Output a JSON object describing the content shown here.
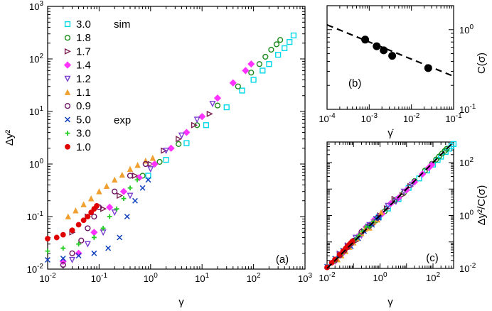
{
  "chart_data": [
    {
      "panel": "a",
      "type": "scatter",
      "tag": "(a)",
      "xlabel": "γ",
      "ylabel": "Δy²",
      "xscale": "log",
      "yscale": "log",
      "xlim": [
        0.01,
        1000
      ],
      "ylim": [
        0.01,
        1000
      ],
      "x_ticks": [
        "10^-2",
        "10^-1",
        "10^0",
        "10^1",
        "10^2",
        "10^3"
      ],
      "y_ticks": [
        "10^-2",
        "10^-1",
        "10^0",
        "10^1",
        "10^2",
        "10^3"
      ],
      "legend_position": "top-left",
      "legend_group_labels": {
        "sim": "sim",
        "exp": "exp"
      },
      "series": [
        {
          "name": "3.0",
          "group": "sim",
          "marker": "square",
          "color": "#00d8e8",
          "x": [
            0.9,
            2.0,
            5.0,
            12,
            30,
            60,
            100,
            150,
            200,
            300,
            400,
            500,
            600
          ],
          "y": [
            0.6,
            1.2,
            2.5,
            5.5,
            12,
            25,
            40,
            60,
            80,
            120,
            160,
            210,
            280
          ]
        },
        {
          "name": "1.8",
          "group": "sim",
          "marker": "circle",
          "color": "#1a8a1a",
          "x": [
            0.7,
            1.5,
            3.5,
            8,
            20,
            50,
            90,
            130,
            170,
            220,
            280,
            330
          ],
          "y": [
            0.6,
            1.1,
            2.4,
            5.5,
            13,
            30,
            55,
            80,
            110,
            150,
            190,
            230
          ]
        },
        {
          "name": "1.7",
          "group": "sim",
          "marker": "tri-right",
          "color": "#7a1f4f",
          "x": [
            0.03,
            0.06,
            0.12,
            0.25,
            0.5,
            1.0,
            1.8,
            3.5,
            7,
            14
          ],
          "y": [
            0.05,
            0.1,
            0.14,
            0.25,
            0.6,
            1.0,
            1.8,
            3.0,
            5.5,
            9
          ]
        },
        {
          "name": "1.4",
          "group": "sim",
          "marker": "diamond",
          "color": "#ff33ff",
          "x": [
            0.02,
            0.04,
            0.08,
            0.16,
            0.3,
            0.6,
            1.2,
            2.5,
            5,
            10,
            20,
            40,
            70,
            90
          ],
          "y": [
            0.014,
            0.02,
            0.05,
            0.15,
            0.3,
            0.55,
            1.0,
            2.0,
            4.0,
            8,
            18,
            35,
            60,
            80
          ]
        },
        {
          "name": "1.2",
          "group": "sim",
          "marker": "tri-down",
          "color": "#7a3fd0",
          "x": [
            0.03,
            0.06,
            0.12,
            0.2,
            0.4,
            1.0,
            2.0,
            4.0,
            8,
            16
          ],
          "y": [
            0.015,
            0.03,
            0.05,
            0.12,
            0.25,
            0.8,
            1.8,
            3.5,
            7,
            14
          ]
        },
        {
          "name": "1.1",
          "group": "sim",
          "marker": "tri-up",
          "color": "#f0a030",
          "x": [
            0.025,
            0.035,
            0.05,
            0.07,
            0.1,
            0.14,
            0.2,
            0.28,
            0.4,
            0.56,
            0.8,
            1.1
          ],
          "y": [
            0.1,
            0.13,
            0.17,
            0.22,
            0.3,
            0.38,
            0.5,
            0.62,
            0.8,
            0.95,
            1.15,
            1.3
          ]
        },
        {
          "name": "0.9",
          "group": "sim",
          "marker": "circle",
          "color": "#6a1060",
          "x": [
            0.02,
            0.03,
            0.045,
            0.06,
            0.08,
            0.1,
            0.2,
            0.4,
            0.8
          ],
          "y": [
            0.012,
            0.02,
            0.035,
            0.06,
            0.1,
            0.15,
            0.3,
            0.6,
            1.0
          ]
        },
        {
          "name": "5.0",
          "group": "exp",
          "marker": "x",
          "color": "#1040c0",
          "x": [
            0.01,
            0.02,
            0.04,
            0.08,
            0.15,
            0.25,
            0.35,
            0.5,
            0.7,
            0.9
          ],
          "y": [
            0.015,
            0.016,
            0.018,
            0.02,
            0.025,
            0.04,
            0.1,
            0.2,
            0.35,
            0.5
          ]
        },
        {
          "name": "3.0",
          "group": "exp",
          "marker": "plus",
          "color": "#22cc22",
          "x": [
            0.01,
            0.02,
            0.04,
            0.08,
            0.12,
            0.16,
            0.22,
            0.3,
            0.4,
            0.55
          ],
          "y": [
            0.022,
            0.025,
            0.03,
            0.04,
            0.06,
            0.1,
            0.14,
            0.22,
            0.35,
            0.5
          ]
        },
        {
          "name": "1.0",
          "group": "exp",
          "marker": "dot",
          "color": "#e00000",
          "x": [
            0.01,
            0.015,
            0.02,
            0.03,
            0.04,
            0.05,
            0.06,
            0.07,
            0.08,
            0.09
          ],
          "y": [
            0.038,
            0.04,
            0.045,
            0.055,
            0.07,
            0.085,
            0.1,
            0.12,
            0.14,
            0.16
          ]
        }
      ]
    },
    {
      "panel": "b",
      "type": "scatter",
      "tag": "(b)",
      "xlabel": "γ̇",
      "ylabel": "C(σ)",
      "xscale": "log",
      "yscale": "log",
      "xlim": [
        0.0001,
        0.1
      ],
      "ylim": [
        0.1,
        2.0
      ],
      "x_ticks": [
        "10^-4",
        "10^-3",
        "10^-2",
        "10^-1"
      ],
      "y_ticks": [
        "10^0",
        "10^-1"
      ],
      "points": {
        "x": [
          0.0008,
          0.0015,
          0.0022,
          0.0035,
          0.025
        ],
        "y": [
          0.75,
          0.62,
          0.55,
          0.47,
          0.33
        ]
      },
      "fit_line": {
        "x": [
          0.0001,
          0.1
        ],
        "y": [
          1.15,
          0.26
        ]
      }
    },
    {
      "panel": "c",
      "type": "scatter",
      "tag": "(c)",
      "xlabel": "γ",
      "ylabel": "Δy²/C(σ)",
      "xscale": "log",
      "yscale": "log",
      "xlim": [
        0.01,
        600
      ],
      "ylim": [
        0.01,
        600
      ],
      "x_ticks": [
        "10^-2",
        "10^0",
        "10^2"
      ],
      "y_ticks": [
        "10^2",
        "10^0",
        "10^-2"
      ],
      "fit_line": {
        "x": [
          0.01,
          600
        ],
        "y": [
          0.01,
          600
        ]
      }
    }
  ]
}
